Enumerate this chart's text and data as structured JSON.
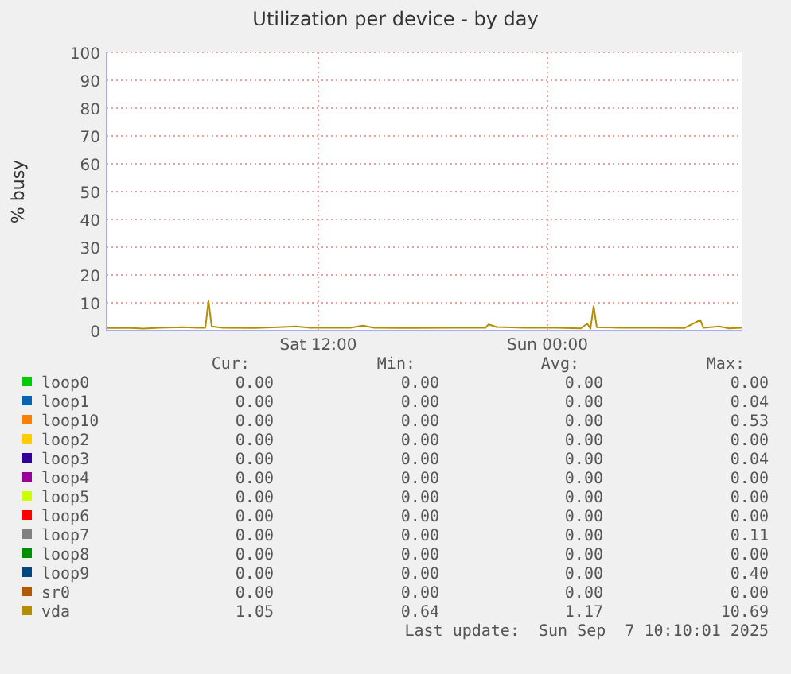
{
  "chart_data": {
    "type": "line",
    "title": "Utilization per device - by day",
    "ylabel": "% busy",
    "xlim": [
      "2025-09-06T00:55",
      "2025-09-07T10:10"
    ],
    "xticks": [
      {
        "value": "2025-09-06T12:00",
        "label": "Sat 12:00"
      },
      {
        "value": "2025-09-07T00:00",
        "label": "Sun 00:00"
      }
    ],
    "ylim": [
      0,
      100
    ],
    "yticks": [
      0,
      10,
      20,
      30,
      40,
      50,
      60,
      70,
      80,
      90,
      100
    ],
    "grid": true,
    "legend": "bottom",
    "marker": "none",
    "line_style": "solid",
    "series": [
      {
        "name": "loop0",
        "color": "#00cc00"
      },
      {
        "name": "loop1",
        "color": "#0066b3"
      },
      {
        "name": "loop10",
        "color": "#ff8000"
      },
      {
        "name": "loop2",
        "color": "#ffcc00"
      },
      {
        "name": "loop3",
        "color": "#330099"
      },
      {
        "name": "loop4",
        "color": "#990099"
      },
      {
        "name": "loop5",
        "color": "#ccff00"
      },
      {
        "name": "loop6",
        "color": "#ff0000"
      },
      {
        "name": "loop7",
        "color": "#808080"
      },
      {
        "name": "loop8",
        "color": "#008f00"
      },
      {
        "name": "loop9",
        "color": "#00487d"
      },
      {
        "name": "sr0",
        "color": "#b35a00"
      },
      {
        "name": "vda",
        "color": "#b38f00",
        "x": [
          "2025-09-06T00:55",
          "2025-09-06T02:00",
          "2025-09-06T02:50",
          "2025-09-06T03:40",
          "2025-09-06T04:55",
          "2025-09-06T05:45",
          "2025-09-06T06:05",
          "2025-09-06T06:15",
          "2025-09-06T06:25",
          "2025-09-06T07:00",
          "2025-09-06T08:40",
          "2025-09-06T09:55",
          "2025-09-06T10:50",
          "2025-09-06T11:35",
          "2025-09-06T13:40",
          "2025-09-06T14:20",
          "2025-09-06T14:55",
          "2025-09-06T17:00",
          "2025-09-06T19:05",
          "2025-09-06T20:45",
          "2025-09-06T20:55",
          "2025-09-06T21:20",
          "2025-09-06T22:50",
          "2025-09-07T00:30",
          "2025-09-07T01:45",
          "2025-09-07T02:05",
          "2025-09-07T02:15",
          "2025-09-07T02:25",
          "2025-09-07T02:35",
          "2025-09-07T03:50",
          "2025-09-07T05:30",
          "2025-09-07T07:10",
          "2025-09-07T08:00",
          "2025-09-07T08:10",
          "2025-09-07T09:00",
          "2025-09-07T09:30",
          "2025-09-07T10:10"
        ],
        "values": [
          0.9,
          1.0,
          0.7,
          1.0,
          1.2,
          1.0,
          1.0,
          10.7,
          1.5,
          1.0,
          0.9,
          1.2,
          1.5,
          1.0,
          1.0,
          1.8,
          1.0,
          0.9,
          1.0,
          1.0,
          2.2,
          1.3,
          1.0,
          1.0,
          0.8,
          2.5,
          0.7,
          8.8,
          1.2,
          1.0,
          1.0,
          0.9,
          3.8,
          1.0,
          1.5,
          0.8,
          1.0
        ]
      }
    ],
    "annotations": [
      "Cur:",
      "Min:",
      "Avg:",
      "Max:",
      "0.00",
      "0.00",
      "0.00",
      "0.00",
      "0.00",
      "0.00",
      "0.00",
      "0.04",
      "0.00",
      "0.00",
      "0.00",
      "0.53",
      "0.00",
      "0.00",
      "0.00",
      "0.00",
      "0.00",
      "0.00",
      "0.00",
      "0.04",
      "0.00",
      "0.00",
      "0.00",
      "0.00",
      "0.00",
      "0.00",
      "0.00",
      "0.00",
      "0.00",
      "0.00",
      "0.00",
      "0.00",
      "0.00",
      "0.00",
      "0.00",
      "0.11",
      "0.00",
      "0.00",
      "0.00",
      "0.00",
      "0.00",
      "0.00",
      "0.00",
      "0.40",
      "0.00",
      "0.00",
      "0.00",
      "0.00",
      "1.05",
      "0.64",
      "1.17",
      "10.69",
      "Last update:  Sun Sep  7 10:10:01 2025"
    ]
  }
}
